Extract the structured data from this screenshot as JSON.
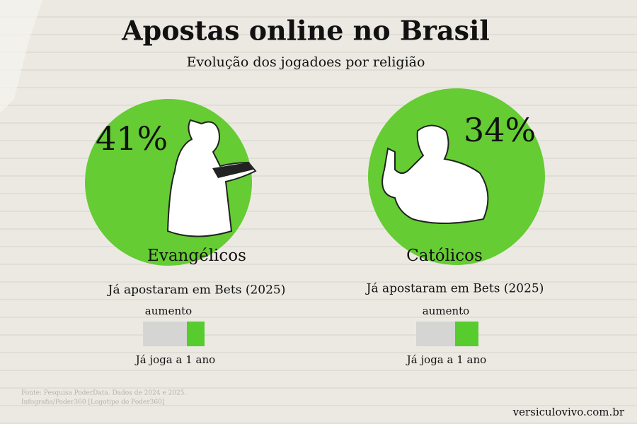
{
  "header": {
    "title": "Apostas online no Brasil",
    "subtitle": "Evolução dos jogadoes por religião"
  },
  "groups": [
    {
      "percent": "41%",
      "label": "Evangélicos",
      "caption": "Já apostaram em Bets (2025)",
      "bar_label": "aumento",
      "bar_caption": "Já joga a 1 ano"
    },
    {
      "percent": "34%",
      "label": "Católicos",
      "caption": "Já apostaram em Bets (2025)",
      "bar_label": "aumento",
      "bar_caption": "Já joga a 1 ano"
    }
  ],
  "source": [
    "Fonte: Pesquisa PoderData. Dados de 2024 e 2025.",
    "Infografia/Poder360 [Logotipo do Poder360]"
  ],
  "credit": "versiculovivo.com.br"
}
